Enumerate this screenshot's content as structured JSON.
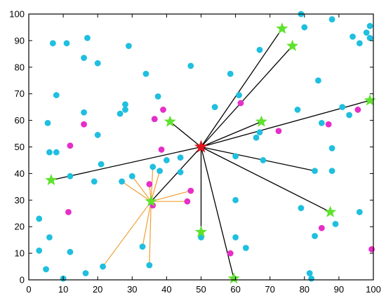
{
  "colors": {
    "background": "#ffffff",
    "axis": "#000000",
    "cyan_point": "#1fbfdf",
    "magenta_point": "#e62ec8",
    "green_star": "#5fe22d",
    "red_star": "#e0141e",
    "black_link": "#000000",
    "orange_link": "#f0a030"
  },
  "chart_data": {
    "type": "scatter",
    "title": "",
    "xlabel": "",
    "ylabel": "",
    "xlim": [
      0,
      100
    ],
    "ylim": [
      0,
      100
    ],
    "x_ticks": [
      "0",
      "10",
      "20",
      "30",
      "40",
      "50",
      "60",
      "70",
      "80",
      "90",
      "100"
    ],
    "y_ticks": [
      "0",
      "10",
      "20",
      "30",
      "40",
      "50",
      "60",
      "70",
      "80",
      "90",
      "100"
    ],
    "grid": false,
    "legend": "none",
    "series": [
      {
        "marker": "circle",
        "color": "#1fbfdf",
        "points": [
          [
            5.5,
            59
          ],
          [
            6,
            48
          ],
          [
            8,
            48
          ],
          [
            8,
            69.5
          ],
          [
            7,
            89
          ],
          [
            11,
            89
          ],
          [
            12,
            39
          ],
          [
            3,
            23
          ],
          [
            3,
            11
          ],
          [
            6,
            16
          ],
          [
            5,
            4
          ],
          [
            12,
            10.5
          ],
          [
            10,
            0.5
          ],
          [
            16,
            83.5
          ],
          [
            17,
            91
          ],
          [
            20,
            81.5
          ],
          [
            16,
            63
          ],
          [
            20,
            54.5
          ],
          [
            21,
            43.5
          ],
          [
            19,
            37
          ],
          [
            21.5,
            5
          ],
          [
            16.5,
            2.5
          ],
          [
            26.5,
            62.5
          ],
          [
            28,
            64
          ],
          [
            28,
            66
          ],
          [
            29,
            88
          ],
          [
            34,
            77.5
          ],
          [
            37.5,
            69
          ],
          [
            36,
            42.5
          ],
          [
            36.5,
            60.5
          ],
          [
            27,
            37
          ],
          [
            30,
            39
          ],
          [
            33,
            12.5
          ],
          [
            35,
            5.5
          ],
          [
            38,
            41
          ],
          [
            40,
            45
          ],
          [
            44,
            46
          ],
          [
            44,
            40.5
          ],
          [
            47,
            80.5
          ],
          [
            58.5,
            77.5
          ],
          [
            54,
            65
          ],
          [
            61,
            69.5
          ],
          [
            60,
            46.5
          ],
          [
            60,
            30
          ],
          [
            60,
            16
          ],
          [
            63,
            12
          ],
          [
            50,
            16
          ],
          [
            66,
            53.5
          ],
          [
            67,
            55.5
          ],
          [
            68,
            45
          ],
          [
            67,
            86.5
          ],
          [
            79,
            27
          ],
          [
            78,
            64
          ],
          [
            80,
            95
          ],
          [
            79,
            100
          ],
          [
            82,
            0.5
          ],
          [
            81.5,
            2.5
          ],
          [
            83,
            16.5
          ],
          [
            83,
            41
          ],
          [
            84,
            75
          ],
          [
            85,
            59
          ],
          [
            88,
            49.5
          ],
          [
            88,
            41
          ],
          [
            88,
            98
          ],
          [
            91,
            65
          ],
          [
            93,
            62
          ],
          [
            94,
            91.5
          ],
          [
            96,
            89
          ],
          [
            96,
            25.5
          ],
          [
            98,
            93
          ],
          [
            99,
            95.5
          ],
          [
            99,
            91
          ],
          [
            89,
            21
          ]
        ]
      },
      {
        "marker": "circle",
        "color": "#e62ec8",
        "points": [
          [
            12,
            50.5
          ],
          [
            16,
            58.5
          ],
          [
            11.5,
            25.5
          ],
          [
            35,
            36
          ],
          [
            36,
            28
          ],
          [
            36.5,
            60.5
          ],
          [
            39,
            64
          ],
          [
            38.5,
            49
          ],
          [
            46,
            29.5
          ],
          [
            47,
            33.5
          ],
          [
            61.5,
            66.5
          ],
          [
            72.5,
            56
          ],
          [
            85,
            19.5
          ],
          [
            87,
            58.5
          ],
          [
            95.5,
            64
          ],
          [
            58.5,
            10
          ],
          [
            99.5,
            11.5
          ]
        ]
      }
    ],
    "stars": {
      "hub": [
        50,
        50
      ],
      "sub_hub": [
        35.5,
        29.5
      ],
      "others": [
        [
          6.5,
          37.5
        ],
        [
          41,
          59.5
        ],
        [
          67.5,
          59.5
        ],
        [
          73.5,
          94.5
        ],
        [
          76.5,
          88
        ],
        [
          99,
          67.5
        ],
        [
          50,
          18
        ],
        [
          59.5,
          0.5
        ],
        [
          87.5,
          25.5
        ]
      ]
    },
    "links": {
      "black": [
        [
          [
            50,
            50
          ],
          [
            6.5,
            37.5
          ]
        ],
        [
          [
            50,
            50
          ],
          [
            41,
            59.5
          ]
        ],
        [
          [
            50,
            50
          ],
          [
            67.5,
            59.5
          ]
        ],
        [
          [
            50,
            50
          ],
          [
            73.5,
            94.5
          ]
        ],
        [
          [
            50,
            50
          ],
          [
            76.5,
            88
          ]
        ],
        [
          [
            50,
            50
          ],
          [
            99,
            67.5
          ]
        ],
        [
          [
            50,
            50
          ],
          [
            50,
            18
          ]
        ],
        [
          [
            50,
            50
          ],
          [
            59.5,
            0.5
          ]
        ],
        [
          [
            50,
            50
          ],
          [
            87.5,
            25.5
          ]
        ],
        [
          [
            50,
            50
          ],
          [
            35.5,
            29.5
          ]
        ],
        [
          [
            50,
            50
          ],
          [
            83,
            41
          ]
        ]
      ],
      "orange": [
        [
          [
            35.5,
            29.5
          ],
          [
            21.5,
            5
          ]
        ],
        [
          [
            35.5,
            29.5
          ],
          [
            27,
            37
          ]
        ],
        [
          [
            35.5,
            29.5
          ],
          [
            30,
            39
          ]
        ],
        [
          [
            35.5,
            29.5
          ],
          [
            33,
            12.5
          ]
        ],
        [
          [
            35.5,
            29.5
          ],
          [
            35,
            5.5
          ]
        ],
        [
          [
            35.5,
            29.5
          ],
          [
            36,
            42.5
          ]
        ],
        [
          [
            35.5,
            29.5
          ],
          [
            38,
            41
          ]
        ],
        [
          [
            35.5,
            29.5
          ],
          [
            46,
            29.5
          ]
        ],
        [
          [
            35.5,
            29.5
          ],
          [
            47,
            33.5
          ]
        ],
        [
          [
            35.5,
            29.5
          ],
          [
            35,
            36
          ]
        ],
        [
          [
            35.5,
            29.5
          ],
          [
            36,
            28
          ]
        ]
      ]
    }
  }
}
